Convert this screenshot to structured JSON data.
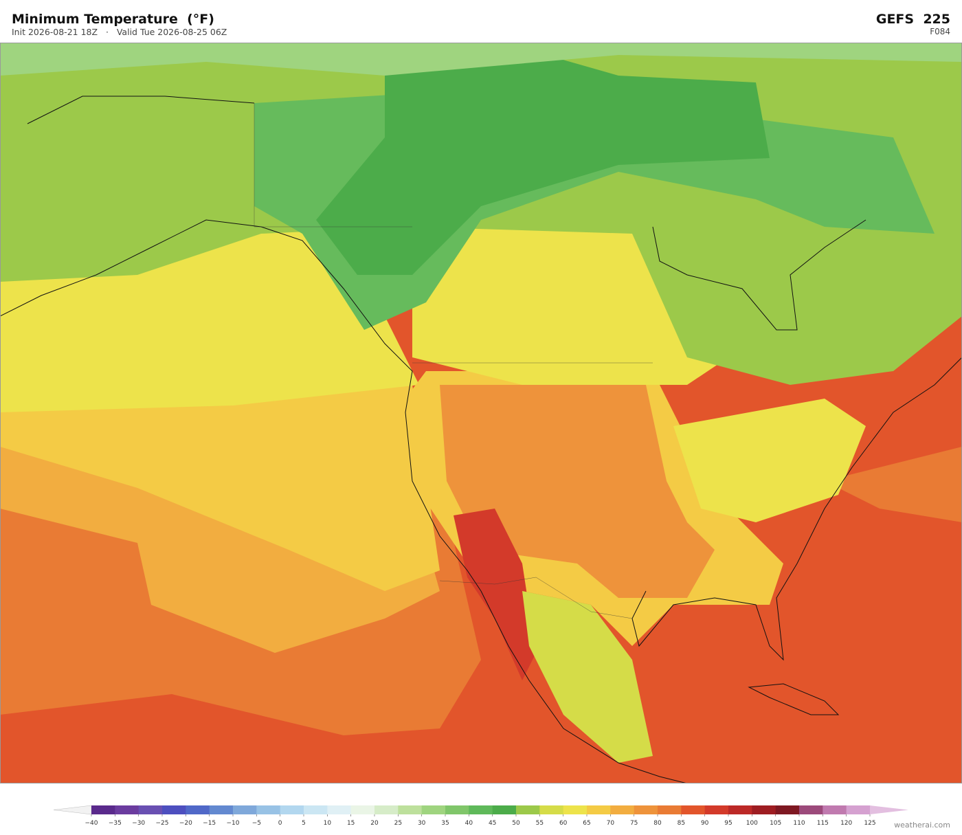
{
  "header": {
    "title": "Minimum Temperature  (°F)",
    "subtitle": "Init 2026-08-21 18Z   ·   Valid Tue 2026-08-25 06Z",
    "model": "GEFS  225",
    "forecast_hour": "F084"
  },
  "colorbar": {
    "ticks": [
      {
        "value": -40,
        "label": "−40"
      },
      {
        "value": -35,
        "label": "−35"
      },
      {
        "value": -30,
        "label": "−30"
      },
      {
        "value": -25,
        "label": "−25"
      },
      {
        "value": -20,
        "label": "−20"
      },
      {
        "value": -15,
        "label": "−15"
      },
      {
        "value": -10,
        "label": "−10"
      },
      {
        "value": -5,
        "label": "−5"
      },
      0,
      5,
      10,
      15,
      20,
      25,
      30,
      35,
      40,
      45,
      50,
      55,
      60,
      65,
      70,
      75,
      80,
      85,
      90,
      95,
      100,
      105,
      110,
      115,
      120,
      125
    ],
    "colors": [
      "#5a2a8c",
      "#6b3c9f",
      "#6950b2",
      "#4d4fbf",
      "#5068c8",
      "#6389d0",
      "#7fa8da",
      "#98c2e5",
      "#b2d7ef",
      "#cbe6f3",
      "#e0f0f5",
      "#eaf5e6",
      "#d6ecc8",
      "#bde09c",
      "#9fd47f",
      "#80c66a",
      "#5fb95a",
      "#4cac4a",
      "#9cc94a",
      "#d5dc48",
      "#ede34b",
      "#f4cb45",
      "#f2ad40",
      "#ee933b",
      "#e97b34",
      "#e2552b",
      "#d33a2a",
      "#bc2927",
      "#9e1d22",
      "#7e1822",
      "#9c4a7b",
      "#c07aaf",
      "#d5a1d0"
    ],
    "under_color": "#f2f2f2",
    "over_color": "#e3bfe0"
  },
  "watermark": "weatherai.com"
}
